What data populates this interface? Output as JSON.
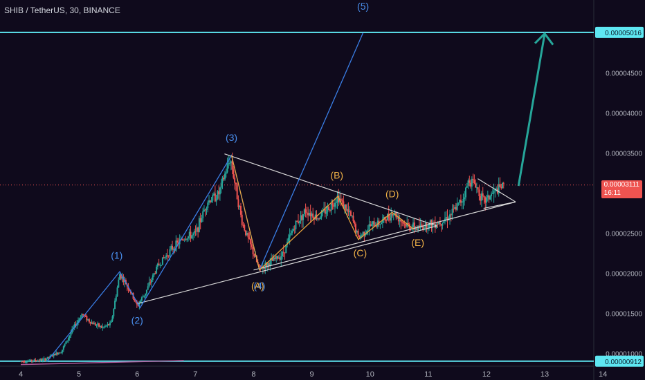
{
  "header": {
    "title": "SHIB / TetherUS, 30, BINANCE"
  },
  "colors": {
    "background": "#0f0a1c",
    "candle_up": "#26a69a",
    "candle_down": "#ef5350",
    "wave_blue": "#3a7ee6",
    "wave_orange": "#e8a33d",
    "trendline": "#d8d8d8",
    "level_line": "#5ee7f2",
    "arrow": "#26a69a",
    "label_blue": "#4a90f0",
    "label_orange": "#f2b347"
  },
  "current_price": {
    "value": "0.00003111",
    "countdown": "16:11"
  },
  "chart_data": {
    "type": "candlestick",
    "title": "SHIB / TetherUS, 30, BINANCE",
    "y_axis": {
      "range": [
        8.5e-06,
        5.42e-05
      ],
      "ticks": [
        "0.00001000",
        "0.00001500",
        "0.00002000",
        "0.00002500",
        "0.00003000",
        "0.00003500",
        "0.00004000",
        "0.00004500",
        "0.00005000"
      ]
    },
    "x_axis": {
      "range": [
        4,
        14.2
      ],
      "ticks": [
        "4",
        "5",
        "6",
        "7",
        "8",
        "9",
        "10",
        "11",
        "12",
        "13",
        "14"
      ]
    },
    "horizontal_levels": [
      {
        "value": 5.016e-05,
        "label": "0.00005016"
      },
      {
        "value": 9.12e-06,
        "label": "0.00000912"
      }
    ],
    "price_path": [
      [
        4.0,
        9.1e-06
      ],
      [
        4.4,
        9.3e-06
      ],
      [
        4.7,
        1.04e-05
      ],
      [
        4.9,
        1.32e-05
      ],
      [
        5.05,
        1.5e-05
      ],
      [
        5.2,
        1.4e-05
      ],
      [
        5.4,
        1.33e-05
      ],
      [
        5.55,
        1.38e-05
      ],
      [
        5.7,
        2e-05
      ],
      [
        5.85,
        1.83e-05
      ],
      [
        6.0,
        1.6e-05
      ],
      [
        6.15,
        1.78e-05
      ],
      [
        6.35,
        2.1e-05
      ],
      [
        6.6,
        2.32e-05
      ],
      [
        6.8,
        2.45e-05
      ],
      [
        7.0,
        2.5e-05
      ],
      [
        7.2,
        2.9e-05
      ],
      [
        7.4,
        3e-05
      ],
      [
        7.6,
        3.45e-05
      ],
      [
        7.8,
        2.65e-05
      ],
      [
        8.0,
        2.25e-05
      ],
      [
        8.1,
        2.06e-05
      ],
      [
        8.3,
        2.15e-05
      ],
      [
        8.5,
        2.25e-05
      ],
      [
        8.7,
        2.6e-05
      ],
      [
        8.9,
        2.8e-05
      ],
      [
        9.1,
        2.7e-05
      ],
      [
        9.3,
        2.83e-05
      ],
      [
        9.45,
        2.97e-05
      ],
      [
        9.7,
        2.68e-05
      ],
      [
        9.8,
        2.45e-05
      ],
      [
        10.0,
        2.6e-05
      ],
      [
        10.2,
        2.65e-05
      ],
      [
        10.4,
        2.77e-05
      ],
      [
        10.6,
        2.62e-05
      ],
      [
        10.8,
        2.57e-05
      ],
      [
        11.0,
        2.62e-05
      ],
      [
        11.2,
        2.65e-05
      ],
      [
        11.4,
        2.75e-05
      ],
      [
        11.6,
        2.95e-05
      ],
      [
        11.7,
        3.18e-05
      ],
      [
        11.8,
        3.13e-05
      ],
      [
        11.95,
        2.9e-05
      ],
      [
        12.1,
        3e-05
      ],
      [
        12.3,
        3.11e-05
      ]
    ],
    "wave_labels": [
      {
        "text": "(1)",
        "x": 5.65,
        "y": 2.19e-05,
        "color": "blue"
      },
      {
        "text": "(2)",
        "x": 6.0,
        "y": 1.38e-05,
        "color": "blue"
      },
      {
        "text": "(3)",
        "x": 7.62,
        "y": 3.66e-05,
        "color": "blue"
      },
      {
        "text": "(4)",
        "x": 8.1,
        "y": 1.81e-05,
        "color": "blue"
      },
      {
        "text": "(5)",
        "x": 9.88,
        "y": 5.3e-05,
        "color": "blue"
      },
      {
        "text": "(A)",
        "x": 8.07,
        "y": 1.81e-05,
        "color": "orange"
      },
      {
        "text": "(B)",
        "x": 9.43,
        "y": 3.19e-05,
        "color": "orange"
      },
      {
        "text": "(C)",
        "x": 9.83,
        "y": 2.22e-05,
        "color": "orange"
      },
      {
        "text": "(D)",
        "x": 10.38,
        "y": 2.96e-05,
        "color": "orange"
      },
      {
        "text": "(E)",
        "x": 10.82,
        "y": 2.35e-05,
        "color": "orange"
      }
    ],
    "wave_lines": {
      "blue": [
        [
          4.45,
          9.1e-06
        ],
        [
          5.7,
          2.03e-05
        ],
        [
          6.05,
          1.58e-05
        ],
        [
          7.62,
          3.48e-05
        ],
        [
          8.1,
          2.05e-05
        ],
        [
          9.88,
          5.01e-05
        ]
      ],
      "orange": [
        [
          7.62,
          3.48e-05
        ],
        [
          8.1,
          2.05e-05
        ],
        [
          9.45,
          2.97e-05
        ],
        [
          9.8,
          2.43e-05
        ],
        [
          10.38,
          2.77e-05
        ],
        [
          10.75,
          2.56e-05
        ]
      ]
    },
    "trend_lines": [
      {
        "from": [
          6.0,
          1.63e-05
        ],
        "to": [
          11.15,
          2.6e-05
        ]
      },
      {
        "from": [
          7.5,
          3.5e-05
        ],
        "to": [
          11.15,
          2.6e-05
        ]
      },
      {
        "from": [
          8.0,
          2.05e-05
        ],
        "to": [
          12.5,
          2.9e-05
        ]
      },
      {
        "from": [
          11.85,
          3.19e-05
        ],
        "to": [
          12.5,
          2.9e-05
        ]
      },
      {
        "from": [
          11.95,
          2.82e-05
        ],
        "to": [
          12.5,
          2.9e-05
        ]
      }
    ],
    "bottom_trend": {
      "from": [
        4.0,
        8.7e-06
      ],
      "to": [
        6.8,
        9.2e-06
      ]
    },
    "projection_arrow": {
      "from": [
        12.55,
        3.1e-05
      ],
      "to": [
        13.0,
        5e-05
      ]
    }
  }
}
